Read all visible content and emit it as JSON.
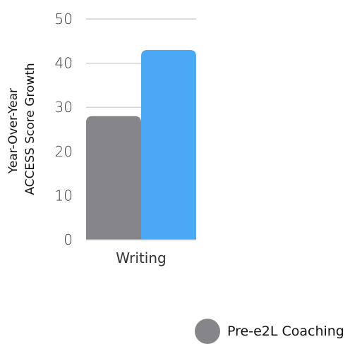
{
  "chart_data": {
    "type": "bar",
    "categories": [
      "Writing"
    ],
    "series": [
      {
        "name": "Pre-e2L Coaching",
        "values": [
          28
        ],
        "color": "#86858a"
      },
      {
        "values": [
          43
        ],
        "color": "#4aa8f7"
      }
    ],
    "title": "",
    "xlabel": "",
    "ylabel_lines": [
      "Year-Over-Year",
      "ACCESS Score Growth"
    ],
    "ylim": [
      0,
      50
    ],
    "yticks": [
      0,
      10,
      20,
      30,
      40,
      50
    ],
    "grid": true,
    "legend_position": "bottom-right"
  }
}
